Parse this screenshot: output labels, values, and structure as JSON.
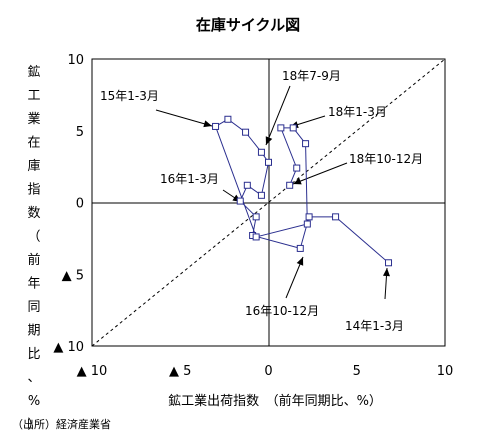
{
  "chart_data": {
    "type": "line",
    "title": "在庫サイクル図",
    "xlabel": "鉱工業出荷指数　（前年同期比、%）",
    "ylabel": "鉱工業在庫指数（前年同期比、%）",
    "xlim": [
      -10,
      10
    ],
    "ylim": [
      -10,
      10
    ],
    "x_ticks": [
      {
        "v": -10,
        "label": "▲ 10"
      },
      {
        "v": -5,
        "label": "▲ 5"
      },
      {
        "v": 0,
        "label": "0"
      },
      {
        "v": 5,
        "label": "5"
      },
      {
        "v": 10,
        "label": "10"
      }
    ],
    "y_ticks": [
      {
        "v": 10,
        "label": "10"
      },
      {
        "v": 5,
        "label": "5"
      },
      {
        "v": 0,
        "label": "0"
      },
      {
        "v": -5,
        "label": "▲ 5"
      },
      {
        "v": -10,
        "label": "▲ 10"
      }
    ],
    "series": [
      {
        "color": "#2b2f8f",
        "marker": "square",
        "points": [
          [
            6.8,
            -4.2
          ],
          [
            3.8,
            -1.0
          ],
          [
            2.3,
            -1.0
          ],
          [
            1.8,
            -3.2
          ],
          [
            -0.9,
            -2.3
          ],
          [
            -0.7,
            -1.0
          ],
          [
            -1.6,
            0.1
          ],
          [
            -1.2,
            1.2
          ],
          [
            -0.4,
            0.5
          ],
          [
            0.0,
            2.8
          ],
          [
            -0.4,
            3.5
          ],
          [
            -1.3,
            4.9
          ],
          [
            -2.3,
            5.8
          ],
          [
            -3.0,
            5.3
          ],
          [
            -0.7,
            -2.4
          ],
          [
            2.2,
            -1.5
          ],
          [
            2.1,
            4.1
          ],
          [
            1.4,
            5.2
          ],
          [
            0.7,
            5.2
          ],
          [
            1.6,
            2.4
          ],
          [
            1.2,
            1.2
          ]
        ]
      }
    ],
    "reference_line": {
      "from": [
        -10,
        -10
      ],
      "to": [
        10,
        10
      ],
      "style": "dashed"
    },
    "annotations": [
      {
        "text": "18年7-9月"
      },
      {
        "text": "15年1-3月"
      },
      {
        "text": "18年1-3月"
      },
      {
        "text": "18年10-12月"
      },
      {
        "text": "16年1-3月"
      },
      {
        "text": "16年10-12月"
      },
      {
        "text": "14年1-3月"
      }
    ],
    "grid": false,
    "legend": "none"
  },
  "source_note": "（出所）経済産業省"
}
